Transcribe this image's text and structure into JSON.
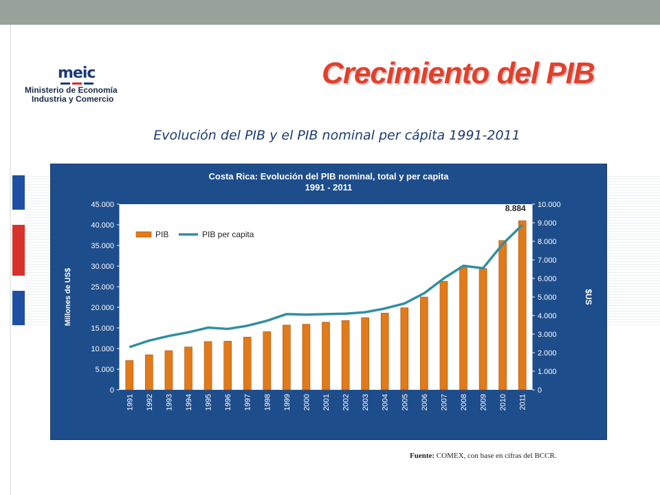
{
  "slide": {
    "title": "Crecimiento del PIB",
    "subtitle": "Evolución del PIB y el PIB nominal per cápita 1991-2011",
    "logo_text": "meic",
    "logo_line1": "Ministerio de Economía",
    "logo_line2": "Industria y Comercio",
    "source_label": "Fuente:",
    "source_text": " COMEX, con base en cifras del BCCR."
  },
  "colors": {
    "title": "#e2402b",
    "subtitle": "#1c3a72",
    "chart_bg": "#1e4d8c",
    "plot_bg": "#ffffff",
    "bar": "#e07a1a",
    "line": "#2f8fa0"
  },
  "chart_data": {
    "type": "bar",
    "title": "Costa Rica: Evolución del PIB nominal, total y per capita",
    "title_line2": "1991 - 2011",
    "ylabel": "Millones de US$",
    "y2label": "$US",
    "categories": [
      "1991",
      "1992",
      "1993",
      "1994",
      "1995",
      "1996",
      "1997",
      "1998",
      "1999",
      "2000",
      "2001",
      "2002",
      "2003",
      "2004",
      "2005",
      "2006",
      "2007",
      "2008",
      "2009",
      "2010",
      "2011"
    ],
    "ylim": [
      0,
      45000
    ],
    "y2lim": [
      0,
      10000
    ],
    "yticks": [
      "0",
      "5.000",
      "10.000",
      "15.000",
      "20.000",
      "25.000",
      "30.000",
      "35.000",
      "40.000",
      "45.000"
    ],
    "y2ticks": [
      "0",
      "1.000",
      "2.000",
      "3.000",
      "4.000",
      "5.000",
      "6.000",
      "7.000",
      "8.000",
      "9.000",
      "10.000"
    ],
    "series": [
      {
        "name": "PIB",
        "type": "bar",
        "axis": "left",
        "values": [
          7100,
          8500,
          9500,
          10400,
          11700,
          11800,
          12800,
          14100,
          15700,
          15900,
          16400,
          16800,
          17500,
          18600,
          19900,
          22500,
          26300,
          29800,
          29400,
          36200,
          41000
        ]
      },
      {
        "name": "PIB per capita",
        "type": "line",
        "axis": "right",
        "values": [
          2300,
          2650,
          2900,
          3100,
          3350,
          3280,
          3450,
          3720,
          4080,
          4050,
          4080,
          4100,
          4180,
          4380,
          4650,
          5200,
          6000,
          6680,
          6550,
          7850,
          8884
        ]
      }
    ],
    "annotation": "8.884",
    "legend_position": "top-left",
    "grid": false
  }
}
